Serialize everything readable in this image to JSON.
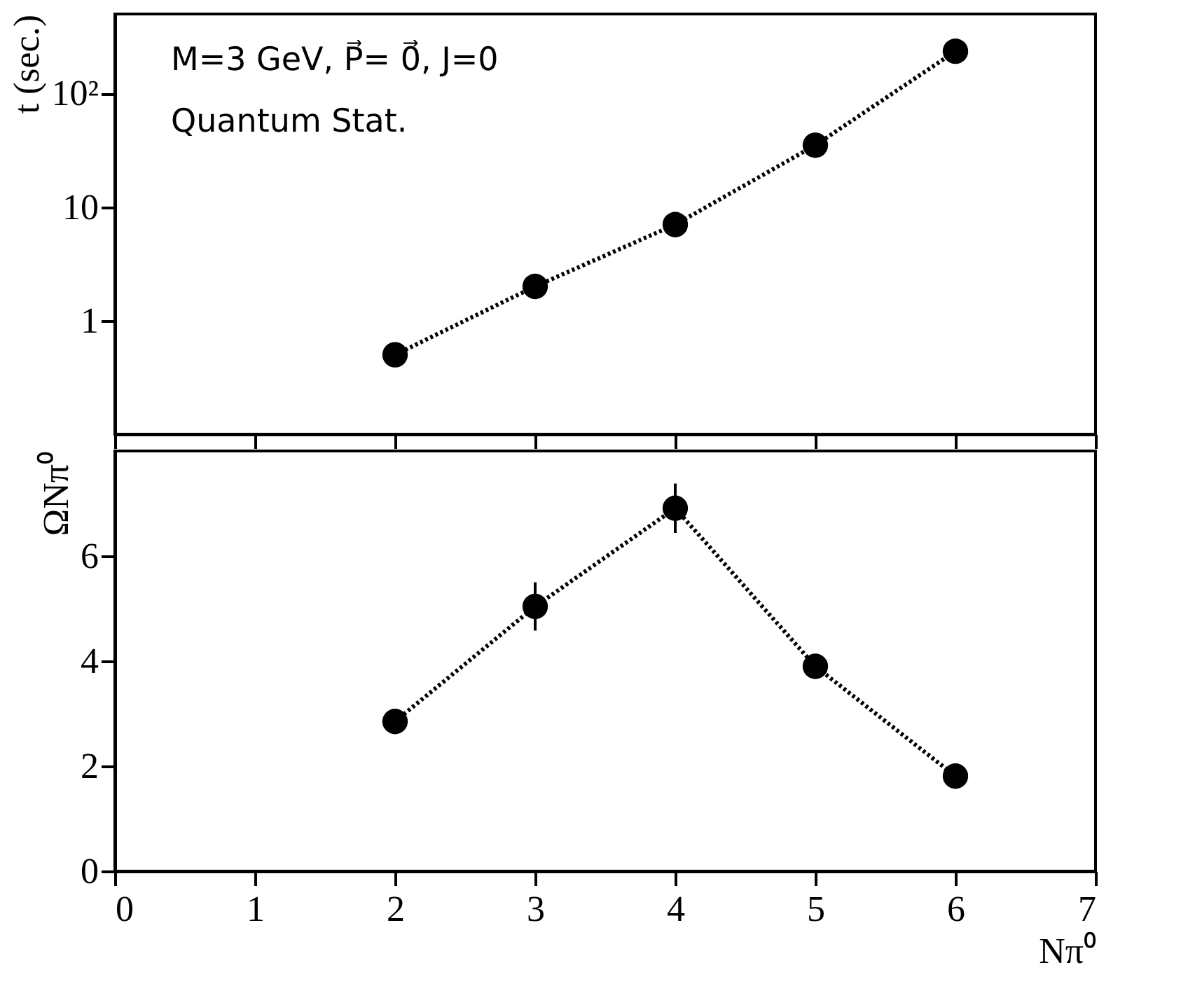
{
  "chart_data": [
    {
      "type": "line",
      "ylabel": "t (sec.)",
      "x": [
        2,
        3,
        4,
        5,
        6
      ],
      "log": "y",
      "xlim": [
        0,
        7
      ],
      "xticks": [
        0,
        1,
        2,
        3,
        4,
        5,
        6,
        7
      ],
      "ylim": [
        0.1,
        500
      ],
      "yticks": [
        1,
        10,
        {
          "value": 100,
          "label": "10²"
        }
      ],
      "tick_labels": "y",
      "grid": false,
      "marker": "circle",
      "line_style": "dotted",
      "series": [
        {
          "color": "#000000",
          "values": [
            0.5,
            2.0,
            7,
            35,
            235
          ]
        }
      ],
      "annotations": [
        "M=3 GeV, P⃗= 0⃗, J=0",
        "Quantum Stat."
      ]
    },
    {
      "type": "line",
      "ylabel": "ΩNπ⁰",
      "xlabel": "Nπ⁰",
      "x": [
        2,
        3,
        4,
        5,
        6
      ],
      "xlim": [
        0,
        7
      ],
      "xticks": [
        0,
        1,
        2,
        3,
        4,
        5,
        6,
        7
      ],
      "ylim": [
        0,
        8
      ],
      "yticks": [
        0,
        2,
        4,
        6
      ],
      "grid": false,
      "marker": "circle",
      "line_style": "dotted",
      "series": [
        {
          "color": "#000000",
          "values": [
            2.85,
            5.04,
            6.91,
            3.9,
            1.81
          ],
          "errors": [
            null,
            0.46,
            0.47,
            null,
            null
          ]
        }
      ]
    }
  ]
}
